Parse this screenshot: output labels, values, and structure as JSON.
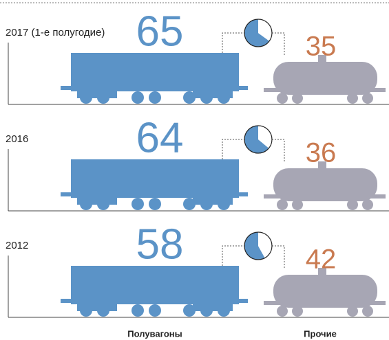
{
  "chart_data": {
    "type": "pictorial",
    "categories": [
      "2017 (1-е полугодие)",
      "2016",
      "2012"
    ],
    "series": [
      {
        "name": "Полувагоны",
        "color": "#5b93c7",
        "label_color": "#5b93c7",
        "values": [
          65,
          64,
          58
        ]
      },
      {
        "name": "Прочие",
        "color": "#a7a6b4",
        "label_color": "#c97a50",
        "values": [
          35,
          36,
          42
        ]
      }
    ]
  }
}
